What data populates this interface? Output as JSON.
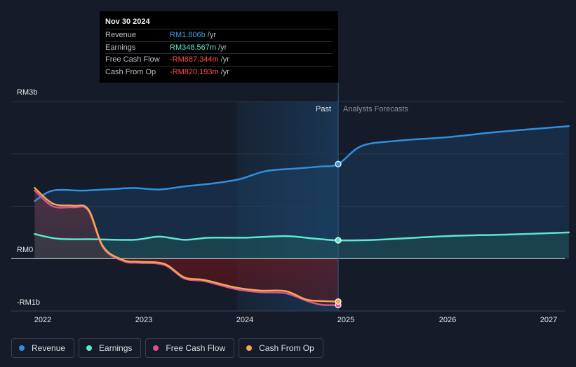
{
  "tooltip": {
    "date": "Nov 30 2024",
    "rows": [
      {
        "label": "Revenue",
        "value": "RM1.806b",
        "unit": "/yr",
        "color": "#3b9ae8"
      },
      {
        "label": "Earnings",
        "value": "RM348.567m",
        "unit": "/yr",
        "color": "#5ee6d0"
      },
      {
        "label": "Free Cash Flow",
        "value": "-RM887.344m",
        "unit": "/yr",
        "color": "#ff4d4d"
      },
      {
        "label": "Cash From Op",
        "value": "-RM820.193m",
        "unit": "/yr",
        "color": "#ff4d4d"
      }
    ]
  },
  "regions": {
    "past": "Past",
    "forecast": "Analysts Forecasts"
  },
  "legend": [
    {
      "label": "Revenue",
      "color": "#2f8fe0"
    },
    {
      "label": "Earnings",
      "color": "#5ee6d0"
    },
    {
      "label": "Free Cash Flow",
      "color": "#d9548f"
    },
    {
      "label": "Cash From Op",
      "color": "#f2a654"
    }
  ],
  "chart_data": {
    "type": "line",
    "y_tick_labels": [
      "RM3b",
      "RM0",
      "-RM1b"
    ],
    "x_tick_labels": [
      "2022",
      "2023",
      "2024",
      "2025",
      "2026",
      "2027"
    ],
    "ylim": [
      -1.0,
      3.0
    ],
    "xlim": [
      2021.7,
      2027.2
    ],
    "past_end": 2024.92,
    "highlight_start": 2023.92,
    "series": [
      {
        "name": "Revenue",
        "color": "#2f8fe0",
        "x": [
          2021.92,
          2022.1,
          2022.4,
          2022.7,
          2022.9,
          2023.15,
          2023.4,
          2023.7,
          2023.95,
          2024.2,
          2024.5,
          2024.75,
          2024.92,
          2025.15,
          2025.5,
          2026.0,
          2026.5,
          2027.2
        ],
        "y": [
          1.1,
          1.3,
          1.3,
          1.33,
          1.35,
          1.32,
          1.38,
          1.44,
          1.52,
          1.67,
          1.72,
          1.76,
          1.806,
          2.15,
          2.25,
          2.32,
          2.42,
          2.53
        ]
      },
      {
        "name": "Earnings",
        "color": "#5ee6d0",
        "x": [
          2021.92,
          2022.15,
          2022.5,
          2022.9,
          2023.15,
          2023.4,
          2023.65,
          2024.0,
          2024.4,
          2024.7,
          2024.92,
          2025.3,
          2026.0,
          2026.6,
          2027.2
        ],
        "y": [
          0.47,
          0.38,
          0.37,
          0.36,
          0.42,
          0.36,
          0.4,
          0.4,
          0.43,
          0.38,
          0.349,
          0.36,
          0.43,
          0.46,
          0.5
        ]
      },
      {
        "name": "Free Cash Flow",
        "color": "#d9548f",
        "x": [
          2021.92,
          2022.1,
          2022.3,
          2022.45,
          2022.6,
          2022.8,
          2022.95,
          2023.2,
          2023.4,
          2023.6,
          2023.9,
          2024.15,
          2024.4,
          2024.6,
          2024.75,
          2024.92
        ],
        "y": [
          1.3,
          1.0,
          0.98,
          0.92,
          0.2,
          -0.05,
          -0.08,
          -0.12,
          -0.38,
          -0.43,
          -0.58,
          -0.64,
          -0.66,
          -0.8,
          -0.88,
          -0.887
        ]
      },
      {
        "name": "Cash From Op",
        "color": "#f2a654",
        "x": [
          2021.92,
          2022.1,
          2022.3,
          2022.45,
          2022.6,
          2022.8,
          2022.95,
          2023.2,
          2023.4,
          2023.6,
          2023.9,
          2024.15,
          2024.4,
          2024.6,
          2024.75,
          2024.92
        ],
        "y": [
          1.35,
          1.05,
          1.01,
          0.94,
          0.22,
          -0.03,
          -0.06,
          -0.1,
          -0.36,
          -0.41,
          -0.55,
          -0.61,
          -0.62,
          -0.78,
          -0.81,
          -0.82
        ]
      }
    ]
  }
}
